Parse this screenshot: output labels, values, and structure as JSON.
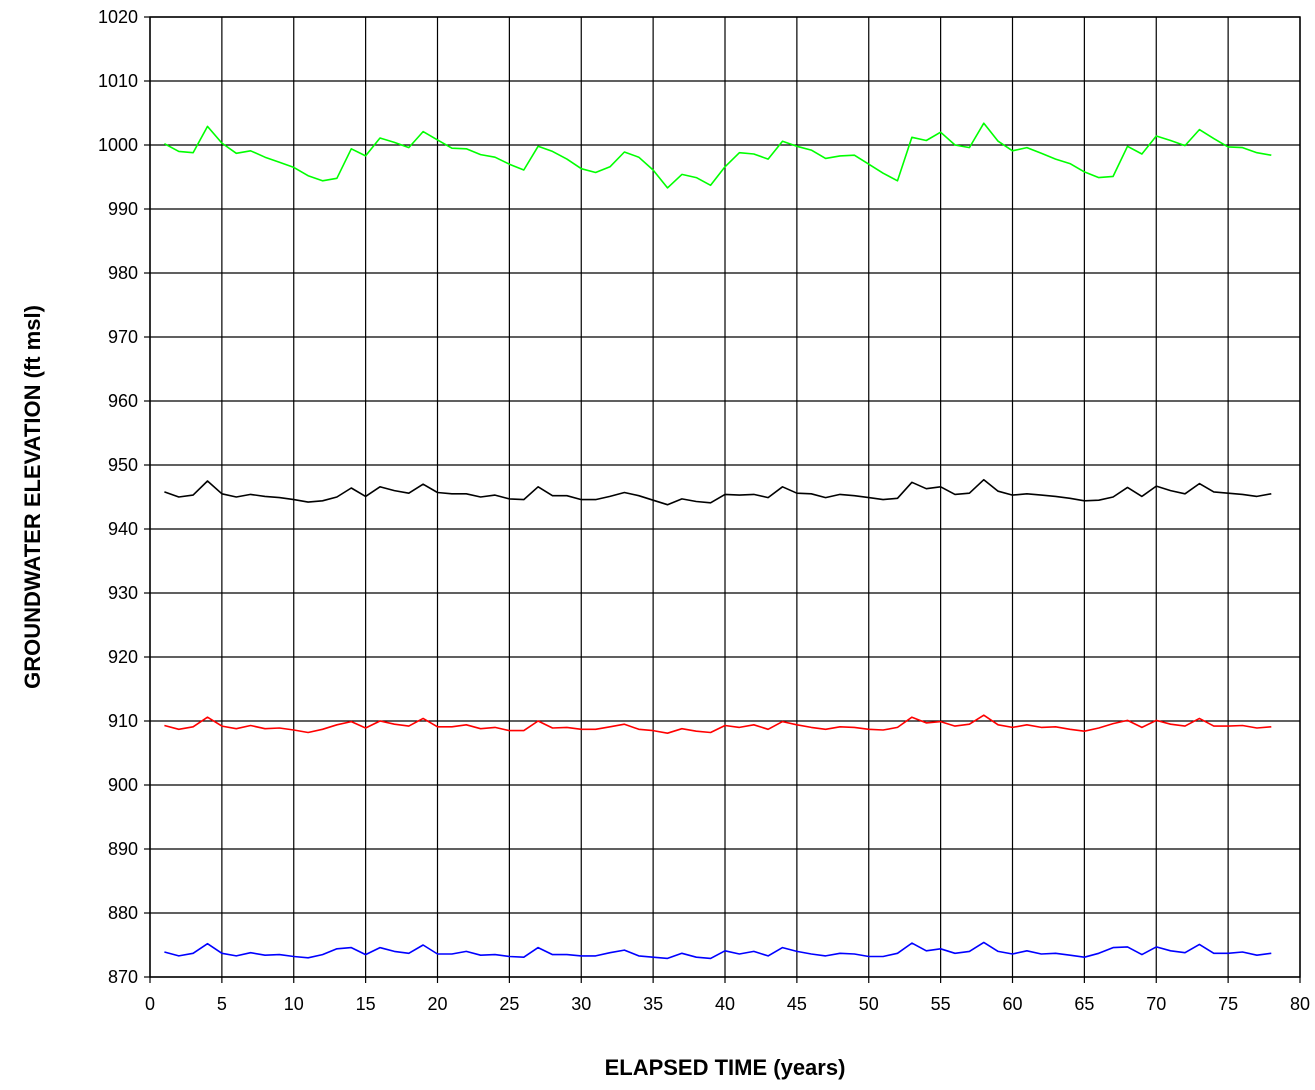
{
  "chart_data": {
    "type": "line",
    "xlabel": "ELAPSED TIME (years)",
    "ylabel": "GROUNDWATER ELEVATION (ft msl)",
    "xlim": [
      0,
      80
    ],
    "ylim": [
      870,
      1020
    ],
    "x_ticks": [
      0,
      5,
      10,
      15,
      20,
      25,
      30,
      35,
      40,
      45,
      50,
      55,
      60,
      65,
      70,
      75,
      80
    ],
    "y_ticks": [
      870,
      880,
      890,
      900,
      910,
      920,
      930,
      940,
      950,
      960,
      970,
      980,
      990,
      1000,
      1010,
      1020
    ],
    "grid": true,
    "legend": "none",
    "x": [
      1,
      2,
      3,
      4,
      5,
      6,
      7,
      8,
      9,
      10,
      11,
      12,
      13,
      14,
      15,
      16,
      17,
      18,
      19,
      20,
      21,
      22,
      23,
      24,
      25,
      26,
      27,
      28,
      29,
      30,
      31,
      32,
      33,
      34,
      35,
      36,
      37,
      38,
      39,
      40,
      41,
      42,
      43,
      44,
      45,
      46,
      47,
      48,
      49,
      50,
      51,
      52,
      53,
      54,
      55,
      56,
      57,
      58,
      59,
      60,
      61,
      62,
      63,
      64,
      65,
      66,
      67,
      68,
      69,
      70,
      71,
      72,
      73,
      74,
      75,
      76,
      77,
      78
    ],
    "series": [
      {
        "color": "#00ff00",
        "values": [
          1000.2,
          999.0,
          998.8,
          1002.9,
          1000.3,
          998.7,
          999.1,
          998.1,
          997.3,
          996.5,
          995.2,
          994.4,
          994.8,
          999.4,
          998.3,
          1001.1,
          1000.4,
          999.6,
          1002.1,
          1000.8,
          999.5,
          999.4,
          998.5,
          998.1,
          997.0,
          996.1,
          999.8,
          999.0,
          997.8,
          996.3,
          995.7,
          996.6,
          998.9,
          998.1,
          996.1,
          993.3,
          995.4,
          994.9,
          993.7,
          996.6,
          998.8,
          998.6,
          997.8,
          1000.6,
          999.8,
          999.2,
          997.9,
          998.3,
          998.4,
          997.0,
          995.6,
          994.4,
          1001.2,
          1000.7,
          1002.0,
          1000.0,
          999.6,
          1003.4,
          1000.6,
          999.1,
          999.6,
          998.7,
          997.8,
          997.1,
          995.8,
          994.9,
          995.1,
          999.8,
          998.6,
          1001.4,
          1000.7,
          999.9,
          1002.4,
          1001.0,
          999.7,
          999.6,
          998.8,
          998.4
        ]
      },
      {
        "color": "#000000",
        "values": [
          945.8,
          945.0,
          945.3,
          947.5,
          945.5,
          945.0,
          945.4,
          945.1,
          944.9,
          944.6,
          944.2,
          944.4,
          945.0,
          946.4,
          945.1,
          946.6,
          946.0,
          945.6,
          947.0,
          945.7,
          945.5,
          945.5,
          945.0,
          945.3,
          944.7,
          944.6,
          946.6,
          945.2,
          945.2,
          944.6,
          944.6,
          945.1,
          945.7,
          945.2,
          944.5,
          943.8,
          944.7,
          944.3,
          944.1,
          945.4,
          945.3,
          945.4,
          944.9,
          946.6,
          945.6,
          945.5,
          944.9,
          945.4,
          945.2,
          944.9,
          944.6,
          944.8,
          947.3,
          946.3,
          946.6,
          945.4,
          945.6,
          947.7,
          945.9,
          945.3,
          945.5,
          945.3,
          945.1,
          944.8,
          944.4,
          944.5,
          945.0,
          946.5,
          945.1,
          946.7,
          946.0,
          945.5,
          947.1,
          945.8,
          945.6,
          945.4,
          945.1,
          945.5
        ]
      },
      {
        "color": "#ff0000",
        "values": [
          909.3,
          908.7,
          909.1,
          910.6,
          909.2,
          908.8,
          909.3,
          908.8,
          908.9,
          908.6,
          908.2,
          908.7,
          909.4,
          909.9,
          908.9,
          910.0,
          909.5,
          909.2,
          910.4,
          909.1,
          909.1,
          909.4,
          908.8,
          909.0,
          908.5,
          908.5,
          910.0,
          908.9,
          909.0,
          908.7,
          908.7,
          909.1,
          909.5,
          908.7,
          908.5,
          908.1,
          908.8,
          908.4,
          908.2,
          909.3,
          909.0,
          909.4,
          908.7,
          909.9,
          909.4,
          909.0,
          908.7,
          909.1,
          909.0,
          908.7,
          908.6,
          909.0,
          910.6,
          909.7,
          909.9,
          909.2,
          909.5,
          910.9,
          909.4,
          909.0,
          909.4,
          909.0,
          909.1,
          908.7,
          908.4,
          908.9,
          909.6,
          910.1,
          909.0,
          910.1,
          909.5,
          909.2,
          910.4,
          909.2,
          909.2,
          909.3,
          908.9,
          909.1
        ]
      },
      {
        "color": "#0000ff",
        "values": [
          873.9,
          873.3,
          873.7,
          875.2,
          873.7,
          873.3,
          873.8,
          873.4,
          873.5,
          873.2,
          873.0,
          873.5,
          874.4,
          874.6,
          873.5,
          874.6,
          874.0,
          873.7,
          875.0,
          873.6,
          873.6,
          874.0,
          873.4,
          873.5,
          873.2,
          873.1,
          874.6,
          873.5,
          873.5,
          873.3,
          873.3,
          873.8,
          874.2,
          873.3,
          873.1,
          872.9,
          873.7,
          873.1,
          872.9,
          874.1,
          873.6,
          874.0,
          873.3,
          874.6,
          874.0,
          873.6,
          873.3,
          873.7,
          873.6,
          873.2,
          873.2,
          873.7,
          875.3,
          874.1,
          874.4,
          873.7,
          874.0,
          875.4,
          874.0,
          873.6,
          874.1,
          873.6,
          873.7,
          873.4,
          873.1,
          873.7,
          874.6,
          874.7,
          873.5,
          874.7,
          874.1,
          873.8,
          875.1,
          873.7,
          873.7,
          873.9,
          873.4,
          873.7
        ]
      }
    ]
  }
}
